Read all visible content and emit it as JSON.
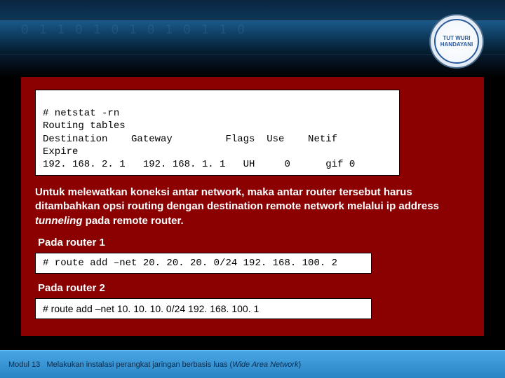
{
  "header": {
    "logo_text": "TUT WURI HANDAYANI",
    "pattern": "0 1 1 0 1 0  1  0 1 0 1 1 0"
  },
  "terminal1": {
    "line1": "# netstat -rn",
    "line2": "Routing tables",
    "line3": "Destination    Gateway         Flags  Use    Netif",
    "line4": "Expire",
    "line5": "192. 168. 2. 1   192. 168. 1. 1   UH     0      gif 0"
  },
  "body": {
    "paragraph_pre": "Untuk melewatkan koneksi antar network, maka antar router tersebut harus ditambahkan opsi routing dengan destination remote network melalui ip address ",
    "paragraph_italic": "tunneling",
    "paragraph_post": " pada remote router.",
    "label_router1": "Pada router 1",
    "label_router2": "Pada router 2"
  },
  "terminal2": {
    "command": "# route add –net 20. 20. 20. 0/24 192. 168. 100. 2"
  },
  "terminal3": {
    "command": "# route add –net 10. 10. 10. 0/24 192. 168. 100. 1"
  },
  "footer": {
    "module": "Modul 13",
    "title_pre": "Melakukan instalasi perangkat jaringan berbasis luas (",
    "title_italic": "Wide Area Network",
    "title_post": ")"
  },
  "colors": {
    "content_bg": "#8b0000",
    "footer_bg_top": "#4aa5e5",
    "footer_bg_bottom": "#2a85c5",
    "header_strip": "#0d3a5c"
  }
}
